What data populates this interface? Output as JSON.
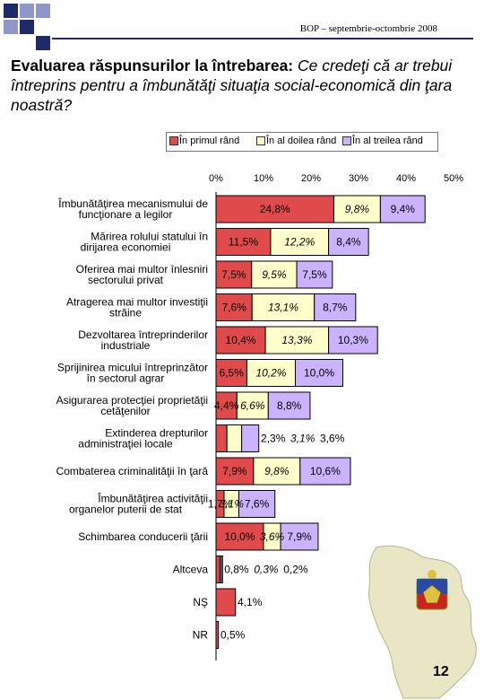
{
  "header": {
    "text": "BOP – septembrie-octombrie 2008"
  },
  "title": {
    "bold": "Evaluarea răspunsurilor la întrebarea:",
    "italic": " Ce credeţi că ar trebui întreprins pentru a îmbunătăţi situaţia social-economică din ţara noastră?"
  },
  "page_number": "12",
  "colors": {
    "first": "#e04a4a",
    "second": "#ffffcc",
    "third": "#ccb3ff",
    "header_blue": "#1f2a6b"
  },
  "chart_data": {
    "type": "bar",
    "orientation": "horizontal",
    "stacked": true,
    "xlim": [
      0,
      50
    ],
    "ticks": [
      "0%",
      "10%",
      "20%",
      "30%",
      "40%",
      "50%"
    ],
    "legend": [
      "În primul rând",
      "În al doilea rând",
      "În al treilea rând"
    ],
    "legend_position": "top",
    "grid": false,
    "categories": [
      "Îmbunătăţirea mecanismului de funcţionare a legilor",
      "Mărirea rolului statului în dirijarea economiei",
      "Oferirea mai multor înlesniri sectorului privat",
      "Atragerea mai multor investiţii străine",
      "Dezvoltarea întreprinderilor industriale",
      "Sprijinirea micului întreprinzător în sectorul agrar",
      "Asigurarea protecţiei proprietăţii cetăţenilor",
      "Extinderea drepturilor administraţiei locale",
      "Combaterea criminalităţii în ţară",
      "Îmbunătăţirea activităţii organelor puterii de stat",
      "Schimbarea conducerii ţării",
      "Altceva",
      "NŞ",
      "NR"
    ],
    "series": [
      {
        "name": "În primul rând",
        "values": [
          24.8,
          11.5,
          7.5,
          7.6,
          10.4,
          6.5,
          4.4,
          2.3,
          7.9,
          1.7,
          10.0,
          0.8,
          4.1,
          0.5
        ],
        "labels": [
          "24,8%",
          "11,5%",
          "7,5%",
          "7,6%",
          "10,4%",
          "6,5%",
          "4,4%",
          "2,3%",
          "7,9%",
          "1,7%",
          "10,0%",
          "0,8%",
          "4,1%",
          "0,5%"
        ]
      },
      {
        "name": "În al doilea rând",
        "values": [
          9.8,
          12.2,
          9.5,
          13.1,
          13.3,
          10.2,
          6.6,
          3.1,
          9.8,
          3.1,
          3.6,
          0.3,
          null,
          null
        ],
        "labels": [
          "9,8%",
          "12,2%",
          "9,5%",
          "13,1%",
          "13,3%",
          "10,2%",
          "6,6%",
          "3,1%",
          "9,8%",
          "3,1%",
          "3,6%",
          "0,3%",
          "",
          ""
        ]
      },
      {
        "name": "În al treilea rând",
        "values": [
          9.4,
          8.4,
          7.5,
          8.7,
          10.3,
          10.0,
          8.8,
          3.6,
          10.6,
          7.6,
          7.9,
          0.2,
          null,
          null
        ],
        "labels": [
          "9,4%",
          "8,4%",
          "7,5%",
          "8,7%",
          "10,3%",
          "10,0%",
          "8,8%",
          "3,6%",
          "10,6%",
          "7,6%",
          "7,9%",
          "0,2%",
          "",
          ""
        ]
      }
    ]
  }
}
